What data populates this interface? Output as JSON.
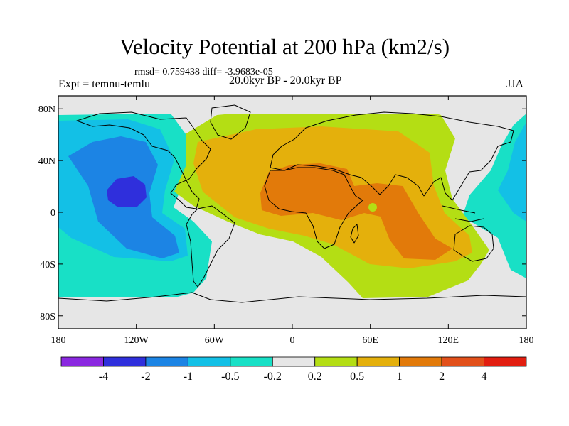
{
  "title": "Velocity Potential at 200 hPa (km2/s)",
  "stats_line": "rmsd= 0.759438  diff= -3.9683e-05",
  "experiment": "Expt = temnu-temlu",
  "period": "20.0kyr BP - 20.0kyr BP",
  "season": "JJA",
  "chart_data": {
    "type": "heatmap",
    "projection": "cylindrical-equidistant",
    "xlim": [
      -180,
      180
    ],
    "ylim": [
      -90,
      90
    ],
    "x_ticks": [
      {
        "value": -180,
        "label": "180"
      },
      {
        "value": -120,
        "label": "120W"
      },
      {
        "value": -60,
        "label": "60W"
      },
      {
        "value": 0,
        "label": "0"
      },
      {
        "value": 60,
        "label": "60E"
      },
      {
        "value": 120,
        "label": "120E"
      },
      {
        "value": 180,
        "label": "180"
      }
    ],
    "y_ticks": [
      {
        "value": 80,
        "label": "80N"
      },
      {
        "value": 40,
        "label": "40N"
      },
      {
        "value": 0,
        "label": "0"
      },
      {
        "value": -40,
        "label": "40S"
      },
      {
        "value": -80,
        "label": "80S"
      }
    ],
    "colorbar": {
      "levels": [
        "-4",
        "-2",
        "-1",
        "-0.5",
        "-0.2",
        "0.2",
        "0.5",
        "1",
        "2",
        "4"
      ],
      "colors": [
        "#8a28e0",
        "#2f2fdc",
        "#1c84e4",
        "#13c0e6",
        "#18e0c6",
        "#e6e6e6",
        "#b4de14",
        "#e4b00c",
        "#e27a0a",
        "#e2501a",
        "#e21e10"
      ]
    },
    "missing_band_lat": [
      -90,
      -71
    ],
    "features": [
      {
        "name": "negative-center-pacific",
        "value": -4,
        "lon": -125,
        "lat": 12
      },
      {
        "name": "negative-center-western-pacific",
        "value": -1,
        "lon": 170,
        "lat": 20
      },
      {
        "name": "positive-center-sahara",
        "value": 2,
        "lon": 25,
        "lat": 15
      },
      {
        "name": "positive-center-indian-ocean",
        "value": 2,
        "lon": 78,
        "lat": -15
      }
    ]
  }
}
